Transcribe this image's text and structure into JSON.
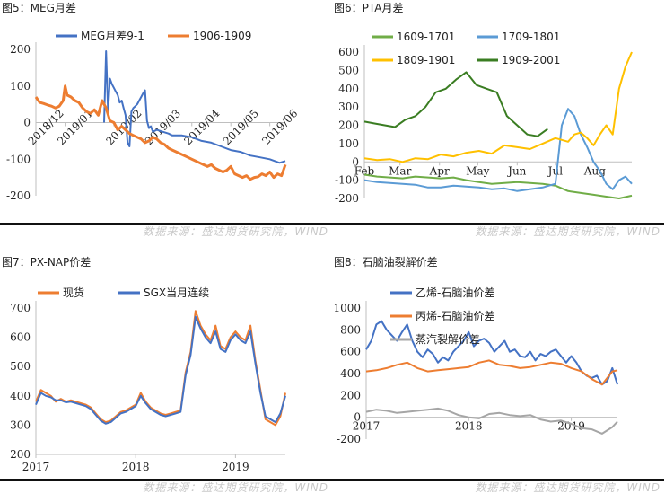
{
  "source_text": "数据来源：盛达期货研究院，WIND",
  "chart_data": [
    {
      "id": "meg",
      "type": "line",
      "panel_title": "图5：MEG月差",
      "xlabel": "",
      "ylabel": "",
      "ylim": [
        -200,
        200
      ],
      "yticks": [
        -200,
        -100,
        0,
        100,
        200
      ],
      "xticks": [
        {
          "x": 0,
          "label": "2018/12"
        },
        {
          "x": 15,
          "label": "2019/01"
        },
        {
          "x": 40,
          "label": "2019/02"
        },
        {
          "x": 60,
          "label": "2019/03"
        },
        {
          "x": 80,
          "label": "2019/04"
        },
        {
          "x": 100,
          "label": "2019/05"
        },
        {
          "x": 120,
          "label": "2019/06"
        }
      ],
      "xlim": [
        0,
        128
      ],
      "series": [
        {
          "name": "MEG月差9-1",
          "color": "#4472c4",
          "x": [
            35,
            36,
            37,
            38,
            39,
            40,
            41,
            42,
            43,
            44,
            45,
            46,
            47,
            48,
            49,
            50,
            51,
            52,
            53,
            54,
            55,
            56,
            57,
            58,
            59,
            60,
            62,
            65,
            68,
            70,
            75,
            80,
            85,
            90,
            95,
            100,
            105,
            110,
            115,
            120,
            125,
            128
          ],
          "y": [
            0,
            195,
            30,
            120,
            105,
            95,
            85,
            75,
            55,
            60,
            40,
            20,
            -55,
            -65,
            30,
            40,
            45,
            50,
            60,
            70,
            80,
            88,
            5,
            -15,
            -10,
            -25,
            -20,
            -25,
            -30,
            -35,
            -35,
            -40,
            -50,
            -55,
            -65,
            -75,
            -80,
            -90,
            -95,
            -100,
            -110,
            -105
          ]
        },
        {
          "name": "1906-1909",
          "color": "#ed7d31",
          "x": [
            0,
            2,
            4,
            6,
            8,
            10,
            12,
            14,
            15,
            16,
            18,
            20,
            22,
            24,
            26,
            28,
            30,
            32,
            34,
            36,
            38,
            40,
            42,
            44,
            46,
            48,
            50,
            52,
            54,
            56,
            58,
            60,
            62,
            64,
            66,
            68,
            70,
            72,
            74,
            76,
            78,
            80,
            82,
            84,
            86,
            88,
            90,
            92,
            94,
            96,
            98,
            100,
            102,
            104,
            106,
            108,
            110,
            112,
            114,
            116,
            118,
            120,
            122,
            124,
            126,
            128
          ],
          "y": [
            70,
            55,
            52,
            48,
            45,
            40,
            45,
            60,
            100,
            75,
            70,
            60,
            55,
            40,
            30,
            25,
            35,
            20,
            60,
            40,
            5,
            0,
            -20,
            -10,
            -20,
            -30,
            -35,
            -40,
            -45,
            -55,
            -50,
            -40,
            -45,
            -55,
            -60,
            -70,
            -75,
            -80,
            -85,
            -90,
            -95,
            -100,
            -105,
            -110,
            -115,
            -120,
            -115,
            -125,
            -130,
            -135,
            -130,
            -120,
            -140,
            -145,
            -150,
            -145,
            -155,
            -150,
            -148,
            -140,
            -145,
            -135,
            -150,
            -140,
            -145,
            -115
          ]
        }
      ]
    },
    {
      "id": "pta",
      "type": "line",
      "panel_title": "图6：PTA月差",
      "xlabel": "",
      "ylabel": "",
      "ylim": [
        -200,
        600
      ],
      "yticks": [
        -200,
        -100,
        0,
        100,
        200,
        300,
        400,
        500,
        600
      ],
      "xticks": [
        {
          "x": 0,
          "label": "Feb"
        },
        {
          "x": 28,
          "label": "Mar"
        },
        {
          "x": 59,
          "label": "Apr"
        },
        {
          "x": 89,
          "label": "May"
        },
        {
          "x": 120,
          "label": "Jun"
        },
        {
          "x": 150,
          "label": "Jul"
        },
        {
          "x": 181,
          "label": "Aug"
        }
      ],
      "xlim": [
        0,
        210
      ],
      "series": [
        {
          "name": "1609-1701",
          "color": "#70ad47",
          "x": [
            0,
            10,
            20,
            30,
            40,
            50,
            60,
            70,
            80,
            90,
            100,
            110,
            120,
            130,
            140,
            150,
            160,
            170,
            180,
            190,
            200,
            210
          ],
          "y": [
            -70,
            -80,
            -85,
            -90,
            -80,
            -85,
            -90,
            -85,
            -100,
            -110,
            -120,
            -115,
            -110,
            -115,
            -120,
            -130,
            -160,
            -170,
            -180,
            -190,
            -200,
            -185
          ]
        },
        {
          "name": "1709-1801",
          "color": "#5b9bd5",
          "x": [
            0,
            10,
            20,
            30,
            40,
            50,
            60,
            70,
            80,
            90,
            100,
            110,
            120,
            130,
            140,
            145,
            150,
            155,
            160,
            165,
            170,
            175,
            180,
            185,
            190,
            195,
            200,
            205,
            210
          ],
          "y": [
            -100,
            -110,
            -115,
            -120,
            -125,
            -140,
            -140,
            -130,
            -135,
            -140,
            -150,
            -145,
            -160,
            -150,
            -140,
            -130,
            -120,
            200,
            290,
            250,
            150,
            80,
            0,
            -50,
            -120,
            -150,
            -100,
            -80,
            -120
          ]
        },
        {
          "name": "1809-1901",
          "color": "#ffc000",
          "x": [
            0,
            10,
            20,
            30,
            40,
            50,
            60,
            70,
            80,
            90,
            100,
            110,
            120,
            130,
            140,
            150,
            160,
            165,
            170,
            175,
            180,
            185,
            190,
            195,
            200,
            205,
            210
          ],
          "y": [
            20,
            10,
            15,
            0,
            20,
            15,
            40,
            30,
            50,
            60,
            45,
            90,
            80,
            70,
            100,
            130,
            110,
            150,
            160,
            130,
            90,
            150,
            200,
            150,
            400,
            520,
            600
          ]
        },
        {
          "name": "1909-2001",
          "color": "#3a7d22",
          "x": [
            0,
            8,
            16,
            24,
            32,
            40,
            48,
            56,
            64,
            72,
            80,
            88,
            96,
            104,
            112,
            120,
            128,
            136,
            144
          ],
          "y": [
            220,
            210,
            200,
            190,
            230,
            250,
            300,
            380,
            400,
            450,
            490,
            420,
            400,
            380,
            250,
            200,
            150,
            140,
            180
          ]
        }
      ]
    },
    {
      "id": "px",
      "type": "line",
      "panel_title": "图7：PX-NAP价差",
      "xlabel": "",
      "ylabel": "",
      "ylim": [
        200,
        700
      ],
      "yticks": [
        200,
        300,
        400,
        500,
        600,
        700
      ],
      "xticks": [
        {
          "x": 0,
          "label": "2017"
        },
        {
          "x": 100,
          "label": "2018"
        },
        {
          "x": 200,
          "label": "2019"
        }
      ],
      "xlim": [
        0,
        250
      ],
      "series": [
        {
          "name": "现货",
          "color": "#ed7d31",
          "x": [
            0,
            5,
            10,
            15,
            20,
            25,
            30,
            35,
            40,
            45,
            50,
            55,
            60,
            65,
            70,
            75,
            80,
            85,
            90,
            95,
            100,
            105,
            110,
            115,
            120,
            125,
            130,
            135,
            140,
            145,
            150,
            155,
            160,
            165,
            170,
            175,
            180,
            185,
            190,
            195,
            200,
            205,
            210,
            215,
            220,
            225,
            230,
            235,
            240,
            245,
            250
          ],
          "y": [
            380,
            420,
            410,
            400,
            380,
            390,
            380,
            385,
            380,
            375,
            370,
            360,
            340,
            320,
            310,
            315,
            330,
            345,
            350,
            360,
            370,
            410,
            380,
            360,
            350,
            340,
            335,
            340,
            345,
            350,
            480,
            550,
            690,
            640,
            610,
            590,
            640,
            570,
            560,
            600,
            620,
            600,
            590,
            640,
            520,
            420,
            320,
            310,
            300,
            330,
            410
          ]
        },
        {
          "name": "SGX当月连续",
          "color": "#4472c4",
          "x": [
            0,
            5,
            10,
            15,
            20,
            25,
            30,
            35,
            40,
            45,
            50,
            55,
            60,
            65,
            70,
            75,
            80,
            85,
            90,
            95,
            100,
            105,
            110,
            115,
            120,
            125,
            130,
            135,
            140,
            145,
            150,
            155,
            160,
            165,
            170,
            175,
            180,
            185,
            190,
            195,
            200,
            205,
            210,
            215,
            220,
            225,
            230,
            235,
            240,
            245,
            250
          ],
          "y": [
            370,
            410,
            400,
            395,
            385,
            385,
            378,
            380,
            375,
            370,
            365,
            355,
            335,
            315,
            305,
            310,
            325,
            340,
            345,
            355,
            365,
            400,
            375,
            355,
            345,
            335,
            330,
            335,
            340,
            345,
            470,
            540,
            670,
            630,
            600,
            580,
            620,
            560,
            550,
            590,
            610,
            590,
            580,
            620,
            510,
            410,
            330,
            320,
            310,
            340,
            400
          ]
        }
      ]
    },
    {
      "id": "naphtha",
      "type": "line",
      "panel_title": "图8：石脑油裂解价差",
      "xlabel": "",
      "ylabel": "",
      "ylim": [
        -200,
        1000
      ],
      "yticks": [
        -200,
        0,
        200,
        400,
        600,
        800,
        1000
      ],
      "xticks": [
        {
          "x": 0,
          "label": "2017"
        },
        {
          "x": 100,
          "label": "2018"
        },
        {
          "x": 200,
          "label": "2019"
        }
      ],
      "xlim": [
        0,
        245
      ],
      "series": [
        {
          "name": "乙烯-石脑油价差",
          "color": "#4472c4",
          "x": [
            0,
            5,
            10,
            15,
            20,
            25,
            30,
            35,
            40,
            45,
            50,
            55,
            60,
            65,
            70,
            75,
            80,
            85,
            90,
            95,
            100,
            105,
            110,
            115,
            120,
            125,
            130,
            135,
            140,
            145,
            150,
            155,
            160,
            165,
            170,
            175,
            180,
            185,
            190,
            195,
            200,
            205,
            210,
            215,
            220,
            225,
            230,
            235,
            240,
            245
          ],
          "y": [
            620,
            700,
            850,
            880,
            800,
            750,
            700,
            780,
            850,
            700,
            600,
            550,
            620,
            580,
            500,
            550,
            520,
            600,
            650,
            700,
            780,
            650,
            700,
            720,
            680,
            600,
            650,
            700,
            600,
            620,
            560,
            550,
            600,
            520,
            580,
            560,
            600,
            620,
            560,
            500,
            560,
            500,
            420,
            380,
            360,
            380,
            300,
            330,
            450,
            300
          ]
        },
        {
          "name": "丙烯-石脑油价差",
          "color": "#ed7d31",
          "x": [
            0,
            10,
            20,
            30,
            40,
            50,
            60,
            70,
            80,
            90,
            100,
            110,
            120,
            130,
            140,
            150,
            160,
            170,
            180,
            190,
            200,
            210,
            220,
            230,
            240,
            245
          ],
          "y": [
            420,
            430,
            450,
            480,
            500,
            450,
            420,
            430,
            440,
            450,
            460,
            500,
            520,
            480,
            470,
            450,
            460,
            480,
            500,
            490,
            450,
            420,
            350,
            300,
            420,
            430
          ]
        },
        {
          "name": "蒸汽裂解价差",
          "color": "#a6a6a6",
          "x": [
            0,
            10,
            20,
            30,
            40,
            50,
            60,
            70,
            80,
            90,
            100,
            110,
            120,
            130,
            140,
            150,
            160,
            170,
            180,
            190,
            200,
            210,
            220,
            230,
            240,
            245
          ],
          "y": [
            50,
            70,
            60,
            40,
            50,
            60,
            70,
            80,
            60,
            20,
            0,
            -10,
            30,
            40,
            20,
            10,
            20,
            -20,
            -40,
            -30,
            -60,
            -100,
            -110,
            -150,
            -90,
            -40
          ]
        }
      ]
    }
  ]
}
